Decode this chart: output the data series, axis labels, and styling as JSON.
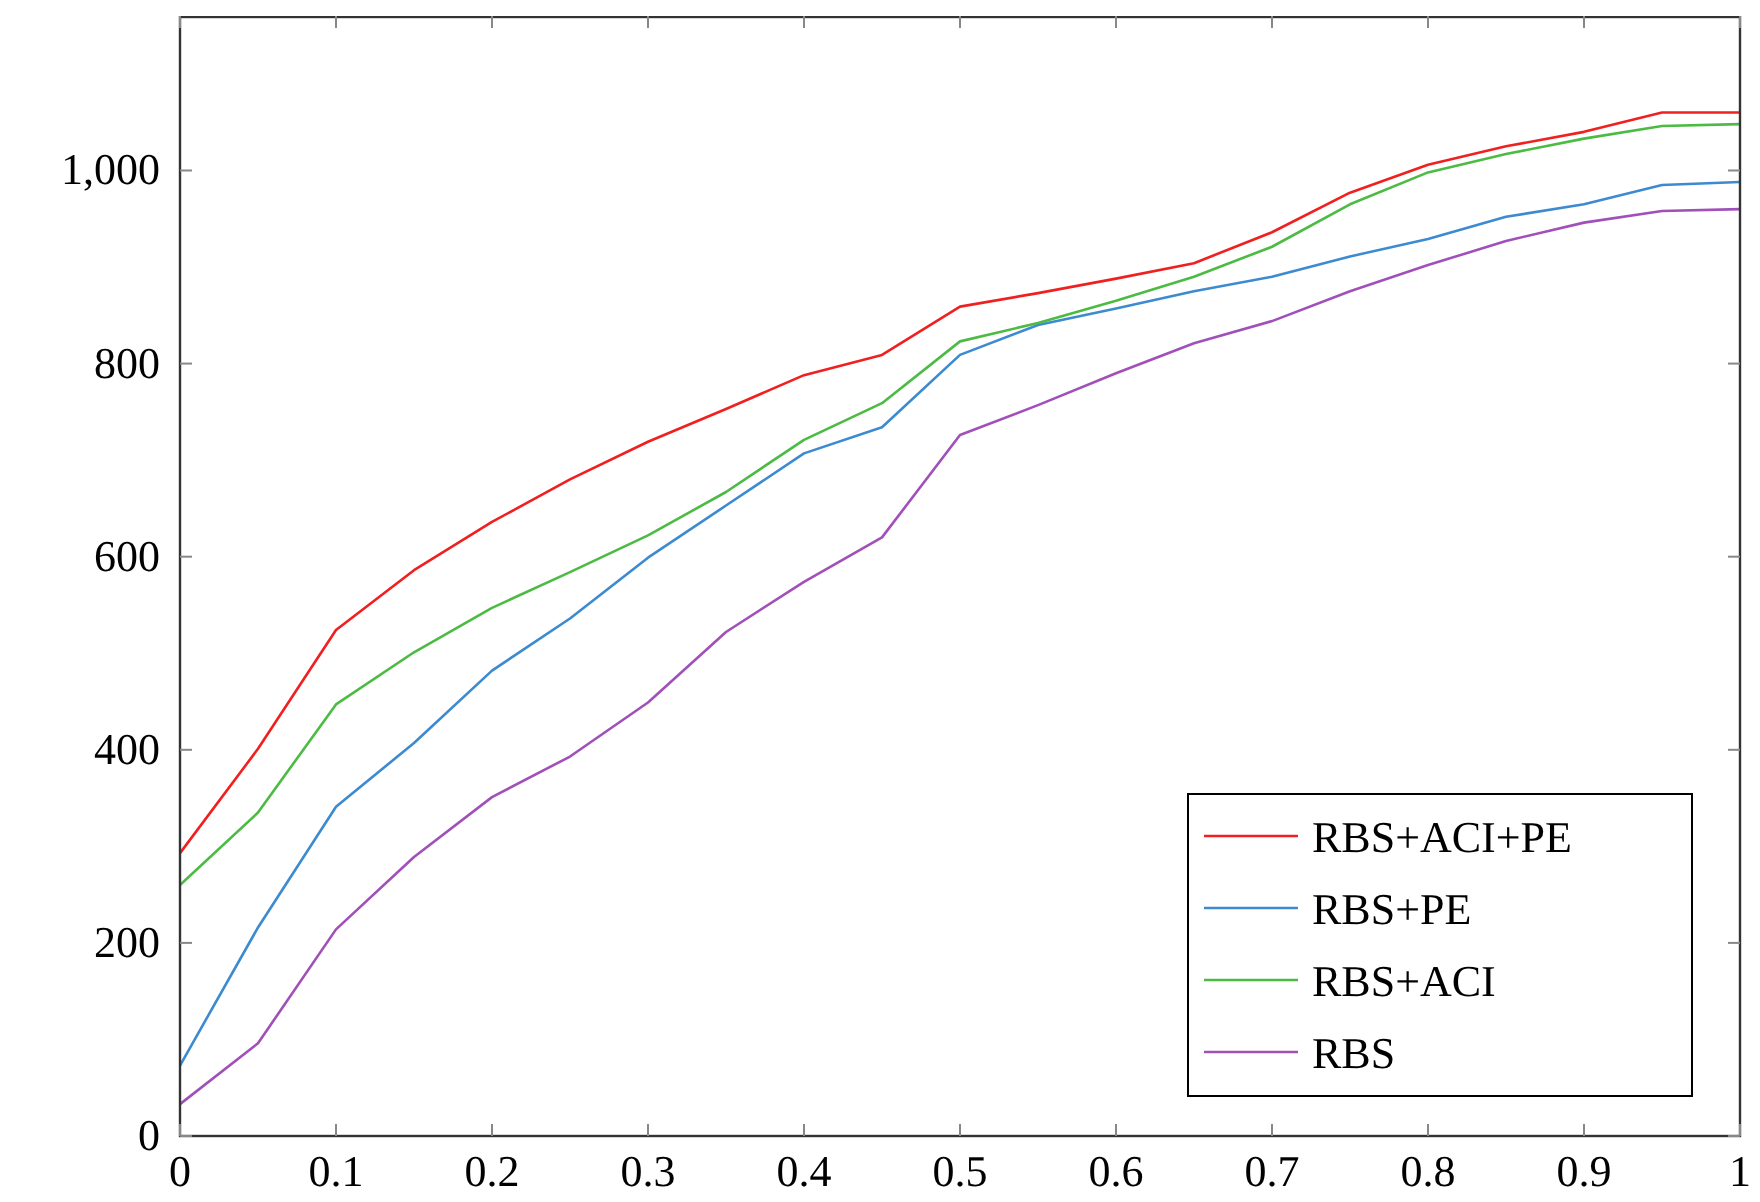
{
  "chart_data": {
    "type": "line",
    "x": [
      0,
      0.05,
      0.1,
      0.15,
      0.2,
      0.25,
      0.3,
      0.35,
      0.4,
      0.45,
      0.5,
      0.55,
      0.6,
      0.65,
      0.7,
      0.75,
      0.8,
      0.85,
      0.9,
      0.95,
      1
    ],
    "xlim": [
      0,
      1
    ],
    "xticks": [
      0,
      0.1,
      0.2,
      0.3,
      0.4,
      0.5,
      0.6,
      0.7,
      0.8,
      0.9,
      1
    ],
    "ylim": [
      0,
      1160
    ],
    "yticks": [
      0,
      200,
      400,
      600,
      800,
      {
        "value": 1000,
        "label": "1,000"
      }
    ],
    "legend": "bottom right",
    "grid": false,
    "series": [
      {
        "name": "RBS+ACI+PE",
        "color": "#f02020",
        "values": [
          293,
          401,
          524,
          586,
          636,
          680,
          719,
          753,
          788,
          809,
          859,
          873,
          888,
          904,
          936,
          977,
          1006,
          1025,
          1040,
          1060,
          1060
        ]
      },
      {
        "name": "RBS+PE",
        "color": "#3c8ad0",
        "values": [
          73,
          216,
          341,
          407,
          482,
          536,
          599,
          653,
          707,
          734,
          809,
          840,
          857,
          875,
          890,
          911,
          929,
          952,
          965,
          985,
          988
        ]
      },
      {
        "name": "RBS+ACI",
        "color": "#4cbb44",
        "values": [
          260,
          335,
          447,
          501,
          547,
          584,
          622,
          667,
          721,
          759,
          823,
          842,
          865,
          890,
          921,
          965,
          998,
          1017,
          1033,
          1046,
          1048
        ]
      },
      {
        "name": "RBS",
        "color": "#a050b8",
        "values": [
          33,
          96,
          214,
          289,
          351,
          393,
          449,
          522,
          574,
          620,
          726,
          757,
          790,
          821,
          844,
          875,
          902,
          927,
          946,
          958,
          960
        ]
      }
    ]
  }
}
